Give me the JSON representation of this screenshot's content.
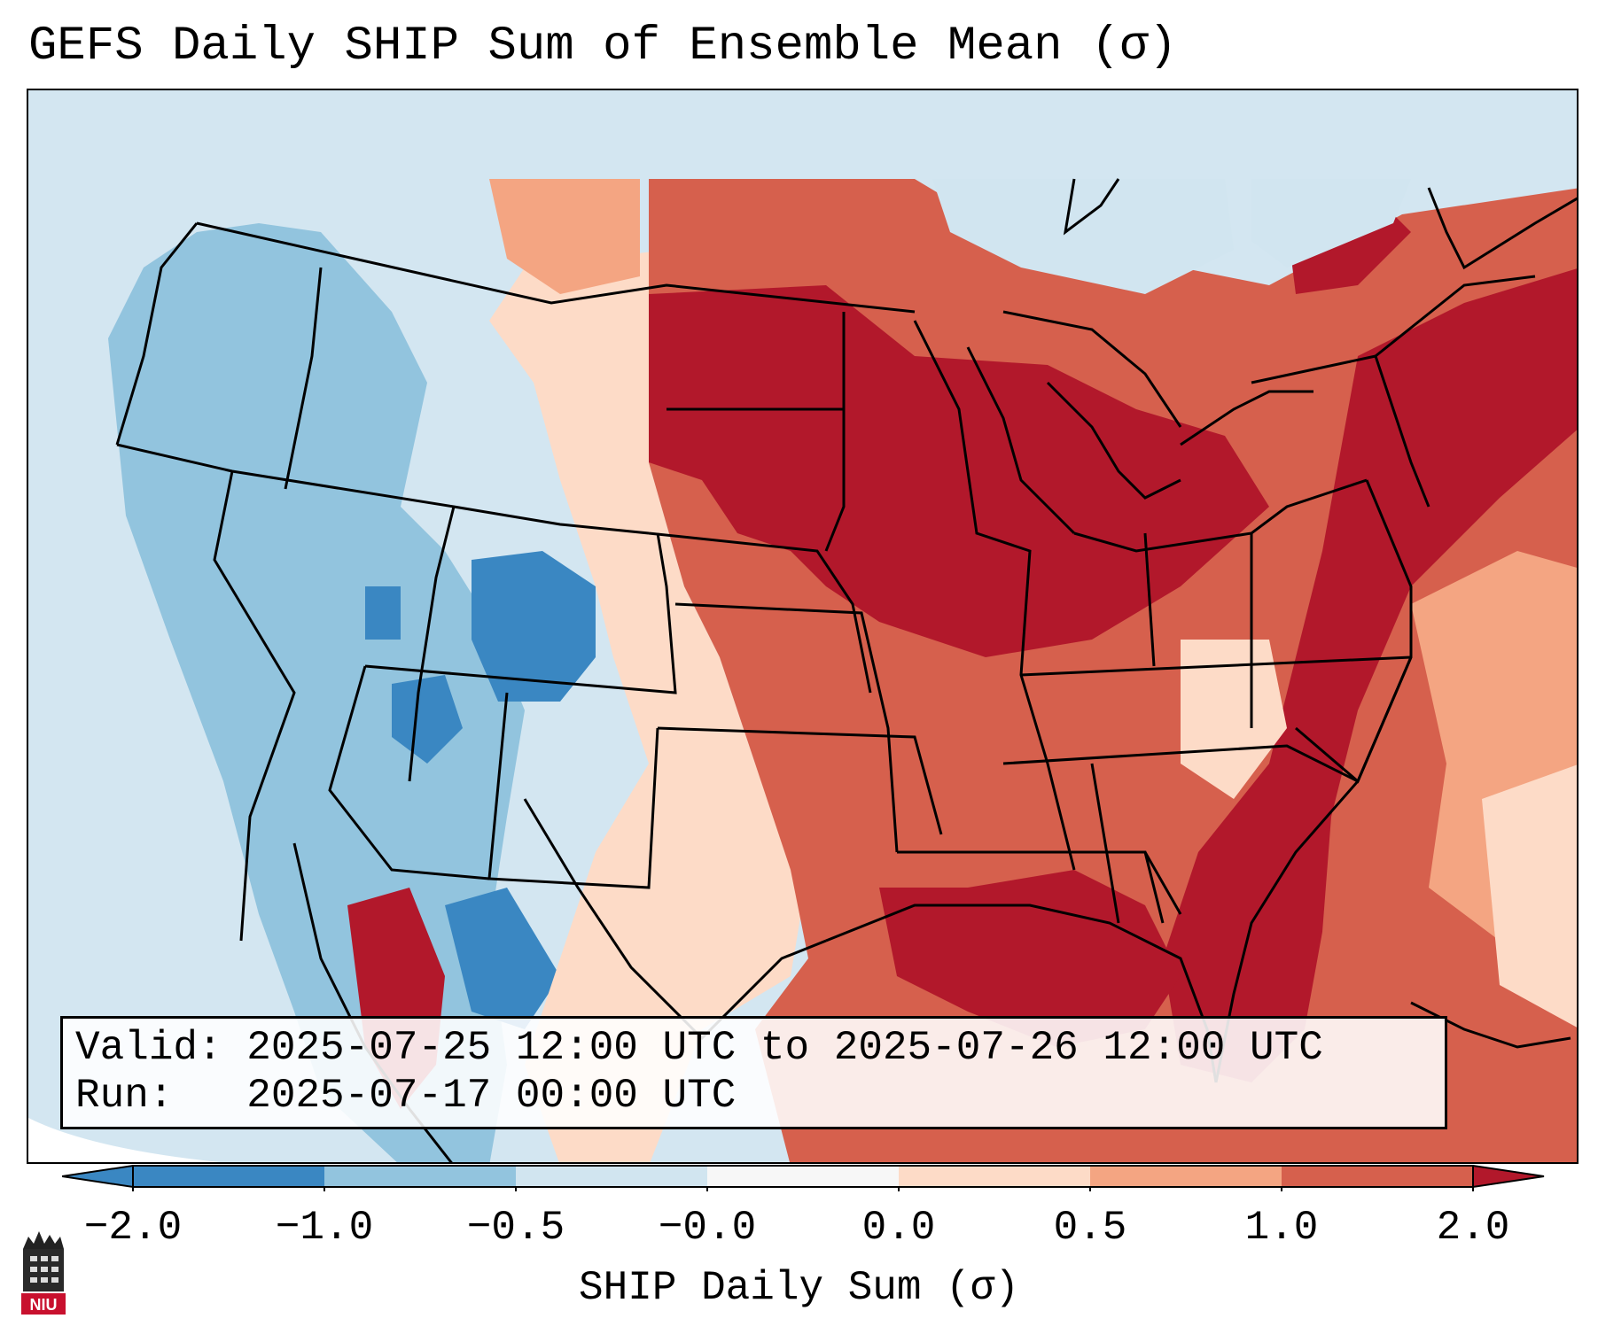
{
  "title": "GEFS Daily SHIP Sum of Ensemble Mean (σ)",
  "info": {
    "valid_line": "Valid: 2025-07-25 12:00 UTC to 2025-07-26 12:00 UTC",
    "run_line": "Run:   2025-07-17 00:00 UTC"
  },
  "colorbar": {
    "label": "SHIP Daily Sum (σ)",
    "ticks": [
      "−2.0",
      "−1.0",
      "−0.5",
      "−0.0",
      "0.0",
      "0.5",
      "1.0",
      "2.0"
    ],
    "colors": [
      "#3a87c2",
      "#92c4de",
      "#d1e5f0",
      "#f7f7f7",
      "#fddbc7",
      "#f4a582",
      "#d6604d",
      "#b2182b"
    ],
    "extend": "both"
  },
  "logo": {
    "text": "NIU",
    "color": "#c8102e"
  },
  "legend_colors": {
    "strong_negative": "#3a87c2",
    "negative": "#92c4de",
    "slight_negative": "#d1e5f0",
    "slight_positive": "#fddbc7",
    "positive": "#f4a582",
    "strong_positive": "#d6604d",
    "extreme_positive": "#b2182b"
  }
}
